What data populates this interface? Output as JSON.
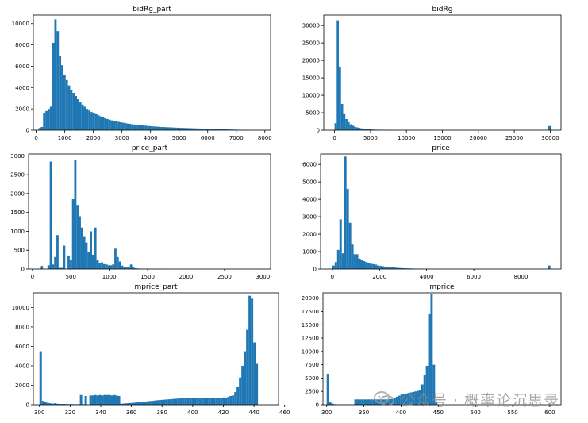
{
  "watermark": "公众号 · 概率论沉思录",
  "colors": {
    "bar": "#1f77b4",
    "axis": "#000000",
    "text": "#000000"
  },
  "chart_data": [
    {
      "type": "bar",
      "title": "bidRg_part",
      "xlim": [
        -100,
        8200
      ],
      "ylim": [
        0,
        10800
      ],
      "xticks": [
        0,
        1000,
        2000,
        3000,
        4000,
        5000,
        6000,
        7000,
        8000
      ],
      "yticks": [
        0,
        2000,
        4000,
        6000,
        8000,
        10000
      ],
      "bins": {
        "start": 83,
        "width": 79
      },
      "values": [
        200,
        300,
        1600,
        1800,
        2000,
        2200,
        8200,
        10400,
        9300,
        7000,
        6100,
        5200,
        4700,
        4200,
        3800,
        3500,
        3200,
        2900,
        2600,
        2400,
        2200,
        2000,
        1850,
        1700,
        1600,
        1500,
        1400,
        1300,
        1200,
        1120,
        1050,
        980,
        920,
        870,
        820,
        780,
        740,
        700,
        660,
        620,
        590,
        560,
        530,
        500,
        480,
        460,
        440,
        420,
        400,
        380,
        360,
        345,
        330,
        315,
        300,
        290,
        280,
        270,
        260,
        250,
        240,
        230,
        222,
        214,
        206,
        198,
        190,
        183,
        176,
        169,
        162,
        155,
        148,
        141,
        134,
        127,
        120,
        113,
        106,
        99,
        92,
        85,
        78,
        71,
        64,
        57,
        50,
        43,
        36,
        29,
        22,
        15,
        10,
        8,
        6,
        5,
        4,
        3,
        2,
        1
      ]
    },
    {
      "type": "bar",
      "title": "bidRg",
      "xlim": [
        -1500,
        31500
      ],
      "ylim": [
        0,
        33000
      ],
      "xticks": [
        0,
        5000,
        10000,
        15000,
        20000,
        25000,
        30000
      ],
      "yticks": [
        0,
        5000,
        10000,
        15000,
        20000,
        25000,
        30000
      ],
      "bins": {
        "start": 0,
        "width": 300
      },
      "values": [
        2000,
        31500,
        18000,
        7500,
        4600,
        3200,
        2300,
        1700,
        1300,
        1000,
        800,
        650,
        520,
        420,
        340,
        280,
        230,
        190,
        160,
        130,
        110,
        95,
        80,
        68,
        58,
        50,
        42,
        36,
        30,
        26,
        22,
        18,
        15,
        12,
        10,
        8,
        6,
        5,
        4,
        3
      ],
      "outliers": [
        {
          "x": 29900,
          "value": 1200
        }
      ]
    },
    {
      "type": "bar",
      "title": "price_part",
      "xlim": [
        -50,
        3100
      ],
      "ylim": [
        0,
        3050
      ],
      "xticks": [
        0,
        500,
        1000,
        1500,
        2000,
        2500,
        3000
      ],
      "yticks": [
        0,
        500,
        1000,
        1500,
        2000,
        2500,
        3000
      ],
      "bins": {
        "start": 80,
        "width": 29
      },
      "values": [
        0,
        80,
        0,
        0,
        100,
        2850,
        120,
        320,
        900,
        30,
        30,
        620,
        0,
        360,
        250,
        1850,
        2900,
        1700,
        1400,
        1100,
        850,
        700,
        460,
        1000,
        380,
        1100,
        250,
        160,
        180,
        130,
        120,
        100,
        100,
        120,
        540,
        320,
        200,
        90,
        60,
        40,
        40,
        120,
        40,
        20,
        15,
        10,
        10,
        8,
        5,
        5,
        5,
        4,
        4,
        3,
        3,
        3,
        3,
        3,
        2,
        2,
        2,
        2,
        2,
        2,
        2,
        2,
        2,
        2,
        2,
        2,
        2,
        2,
        2,
        2,
        2,
        2,
        2,
        2,
        2,
        2,
        2,
        2,
        2,
        2,
        2,
        2,
        2,
        2,
        2,
        2,
        2,
        2,
        2,
        2,
        2,
        2,
        2,
        2,
        2,
        2
      ]
    },
    {
      "type": "bar",
      "title": "price",
      "xlim": [
        -500,
        9700
      ],
      "ylim": [
        0,
        6600
      ],
      "xticks": [
        0,
        2000,
        4000,
        6000,
        8000
      ],
      "yticks": [
        0,
        1000,
        2000,
        3000,
        4000,
        5000,
        6000
      ],
      "bins": {
        "start": 0,
        "width": 100
      },
      "values": [
        200,
        400,
        1100,
        2850,
        900,
        6450,
        4600,
        2650,
        1400,
        850,
        850,
        600,
        550,
        450,
        400,
        350,
        300,
        280,
        250,
        200,
        180,
        160,
        140,
        120,
        100,
        90,
        80,
        70,
        60,
        50,
        45,
        40,
        35,
        30,
        25,
        20,
        15,
        12,
        10,
        8,
        6,
        5,
        4,
        3,
        2
      ],
      "outliers": [
        {
          "x": 9200,
          "value": 200
        }
      ]
    },
    {
      "type": "bar",
      "title": "mprice_part",
      "xlim": [
        296,
        456
      ],
      "ylim": [
        0,
        11500
      ],
      "xticks": [
        300,
        320,
        340,
        360,
        380,
        400,
        420,
        440,
        460
      ],
      "yticks": [
        0,
        2000,
        4000,
        6000,
        8000,
        10000
      ],
      "bins": {
        "start": 300,
        "width": 1.55
      },
      "values": [
        5500,
        400,
        250,
        200,
        150,
        100,
        150,
        100,
        80,
        80,
        80,
        60,
        60,
        60,
        50,
        50,
        50,
        1000,
        50,
        900,
        0,
        950,
        950,
        1000,
        950,
        1000,
        950,
        1000,
        1000,
        1000,
        950,
        1000,
        950,
        900,
        100,
        120,
        140,
        160,
        180,
        200,
        220,
        250,
        280,
        300,
        320,
        350,
        380,
        400,
        430,
        460,
        480,
        500,
        520,
        540,
        560,
        580,
        600,
        620,
        640,
        660,
        680,
        700,
        700,
        700,
        700,
        700,
        700,
        700,
        700,
        700,
        700,
        700,
        700,
        700,
        700,
        700,
        700,
        750,
        700,
        800,
        900,
        950,
        1300,
        1800,
        2800,
        4000,
        5500,
        7700,
        11200,
        10900,
        6400,
        4200
      ]
    },
    {
      "type": "bar",
      "title": "mprice",
      "xlim": [
        295,
        615
      ],
      "ylim": [
        0,
        21000
      ],
      "xticks": [
        300,
        350,
        400,
        450,
        500,
        550,
        600
      ],
      "yticks": [
        0,
        2500,
        5000,
        7500,
        10000,
        12500,
        15000,
        17500,
        20000
      ],
      "bins": {
        "start": 300,
        "width": 3.1
      },
      "values": [
        5800,
        500,
        200,
        100,
        50,
        50,
        50,
        50,
        50,
        50,
        50,
        50,
        1000,
        1000,
        1000,
        1000,
        1000,
        1000,
        1000,
        1000,
        1000,
        1000,
        1000,
        1000,
        1000,
        1000,
        1000,
        1050,
        1100,
        1300,
        1500,
        1700,
        1900,
        2000,
        2100,
        2200,
        2300,
        2400,
        2500,
        2600,
        2800,
        3800,
        5600,
        7300,
        17000,
        20700,
        7500,
        500,
        50,
        20,
        10
      ]
    }
  ]
}
